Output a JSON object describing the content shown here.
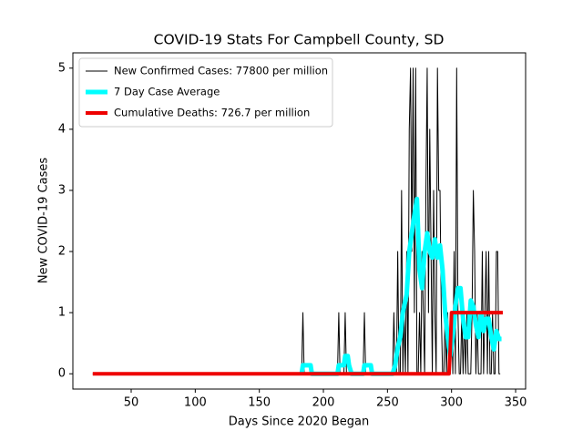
{
  "chart_data": {
    "type": "line",
    "title": "COVID-19 Stats For Campbell County, SD",
    "xlabel": "Days Since 2020 Began",
    "ylabel": "New COVID-19 Cases",
    "xlim": [
      4.5,
      357.8
    ],
    "ylim": [
      -0.25,
      5.25
    ],
    "xticks": [
      50,
      100,
      150,
      200,
      250,
      300,
      350
    ],
    "yticks": [
      0,
      1,
      2,
      3,
      4,
      5
    ],
    "legend": "upper left",
    "series": [
      {
        "name": "New Confirmed Cases: 77800 per million",
        "color": "#000000",
        "width": 1,
        "x": [
          20,
          183,
          184,
          185,
          211,
          212,
          213,
          216,
          217,
          218,
          231,
          232,
          233,
          254,
          255,
          256,
          257,
          258,
          259,
          260,
          261,
          262,
          263,
          264,
          265,
          266,
          267,
          268,
          269,
          270,
          271,
          272,
          273,
          274,
          275,
          276,
          277,
          278,
          279,
          280,
          281,
          282,
          283,
          284,
          285,
          286,
          287,
          288,
          289,
          290,
          291,
          292,
          293,
          294,
          295,
          296,
          297,
          298,
          299,
          300,
          301,
          302,
          303,
          304,
          305,
          306,
          307,
          308,
          309,
          310,
          311,
          312,
          313,
          315,
          316,
          317,
          318,
          319,
          320,
          321,
          323,
          324,
          325,
          326,
          327,
          328,
          329,
          330,
          331,
          332,
          333,
          334,
          335,
          336,
          337,
          338
        ],
        "values": [
          0,
          0,
          1,
          0,
          0,
          1,
          0,
          0,
          1,
          0,
          0,
          1,
          0,
          0,
          1,
          0,
          0,
          2,
          0,
          0,
          3,
          0,
          1,
          0,
          2,
          0,
          4,
          5,
          2,
          5,
          1,
          5,
          0,
          0,
          1,
          0,
          2,
          1,
          0,
          3,
          5,
          1,
          4,
          2,
          0,
          3,
          1,
          0,
          5,
          3,
          3,
          1,
          0,
          0,
          1,
          0,
          1,
          0,
          0,
          1,
          0,
          2,
          0,
          5,
          1,
          0,
          0,
          1,
          0,
          1,
          0,
          1,
          0,
          0,
          1,
          3,
          2,
          0,
          1,
          0,
          0,
          2,
          0,
          1,
          2,
          0,
          2,
          0,
          0,
          1,
          0,
          0,
          2,
          2,
          0,
          0
        ]
      },
      {
        "name": "7 Day Case Average",
        "color": "#00ffff",
        "width": 5,
        "x": [
          183,
          184,
          190,
          191,
          211,
          212,
          216,
          217,
          219,
          220,
          222,
          231,
          232,
          237,
          238,
          254,
          256,
          258,
          260,
          262,
          265,
          267,
          269,
          271,
          273,
          275,
          277,
          279,
          281,
          283,
          285,
          287,
          289,
          291,
          293,
          295,
          297,
          299,
          301,
          303,
          305,
          307,
          309,
          311,
          313,
          315,
          317,
          319,
          321,
          323,
          325,
          327,
          329,
          331,
          333,
          335,
          337,
          339
        ],
        "values": [
          0,
          0.14,
          0.14,
          0,
          0,
          0.14,
          0.14,
          0.29,
          0.29,
          0.14,
          0,
          0,
          0.14,
          0.14,
          0,
          0,
          0.14,
          0.43,
          0.6,
          1.0,
          1.3,
          2.0,
          2.3,
          2.6,
          2.86,
          1.7,
          1.4,
          2.0,
          2.3,
          2.0,
          1.9,
          2.2,
          1.9,
          2.1,
          1.7,
          1.0,
          0.6,
          0.3,
          0.6,
          1.1,
          1.4,
          1.4,
          0.9,
          0.6,
          0.6,
          1.2,
          1.1,
          0.8,
          0.6,
          1.0,
          0.7,
          0.9,
          0.9,
          0.6,
          0.4,
          0.7,
          0.57,
          0.57
        ]
      },
      {
        "name": "Cumulative Deaths: 726.7 per million",
        "color": "#ee0000",
        "width": 4,
        "x": [
          20,
          298,
          299,
          300,
          340
        ],
        "values": [
          0,
          0,
          0.4,
          1,
          1
        ]
      }
    ]
  }
}
